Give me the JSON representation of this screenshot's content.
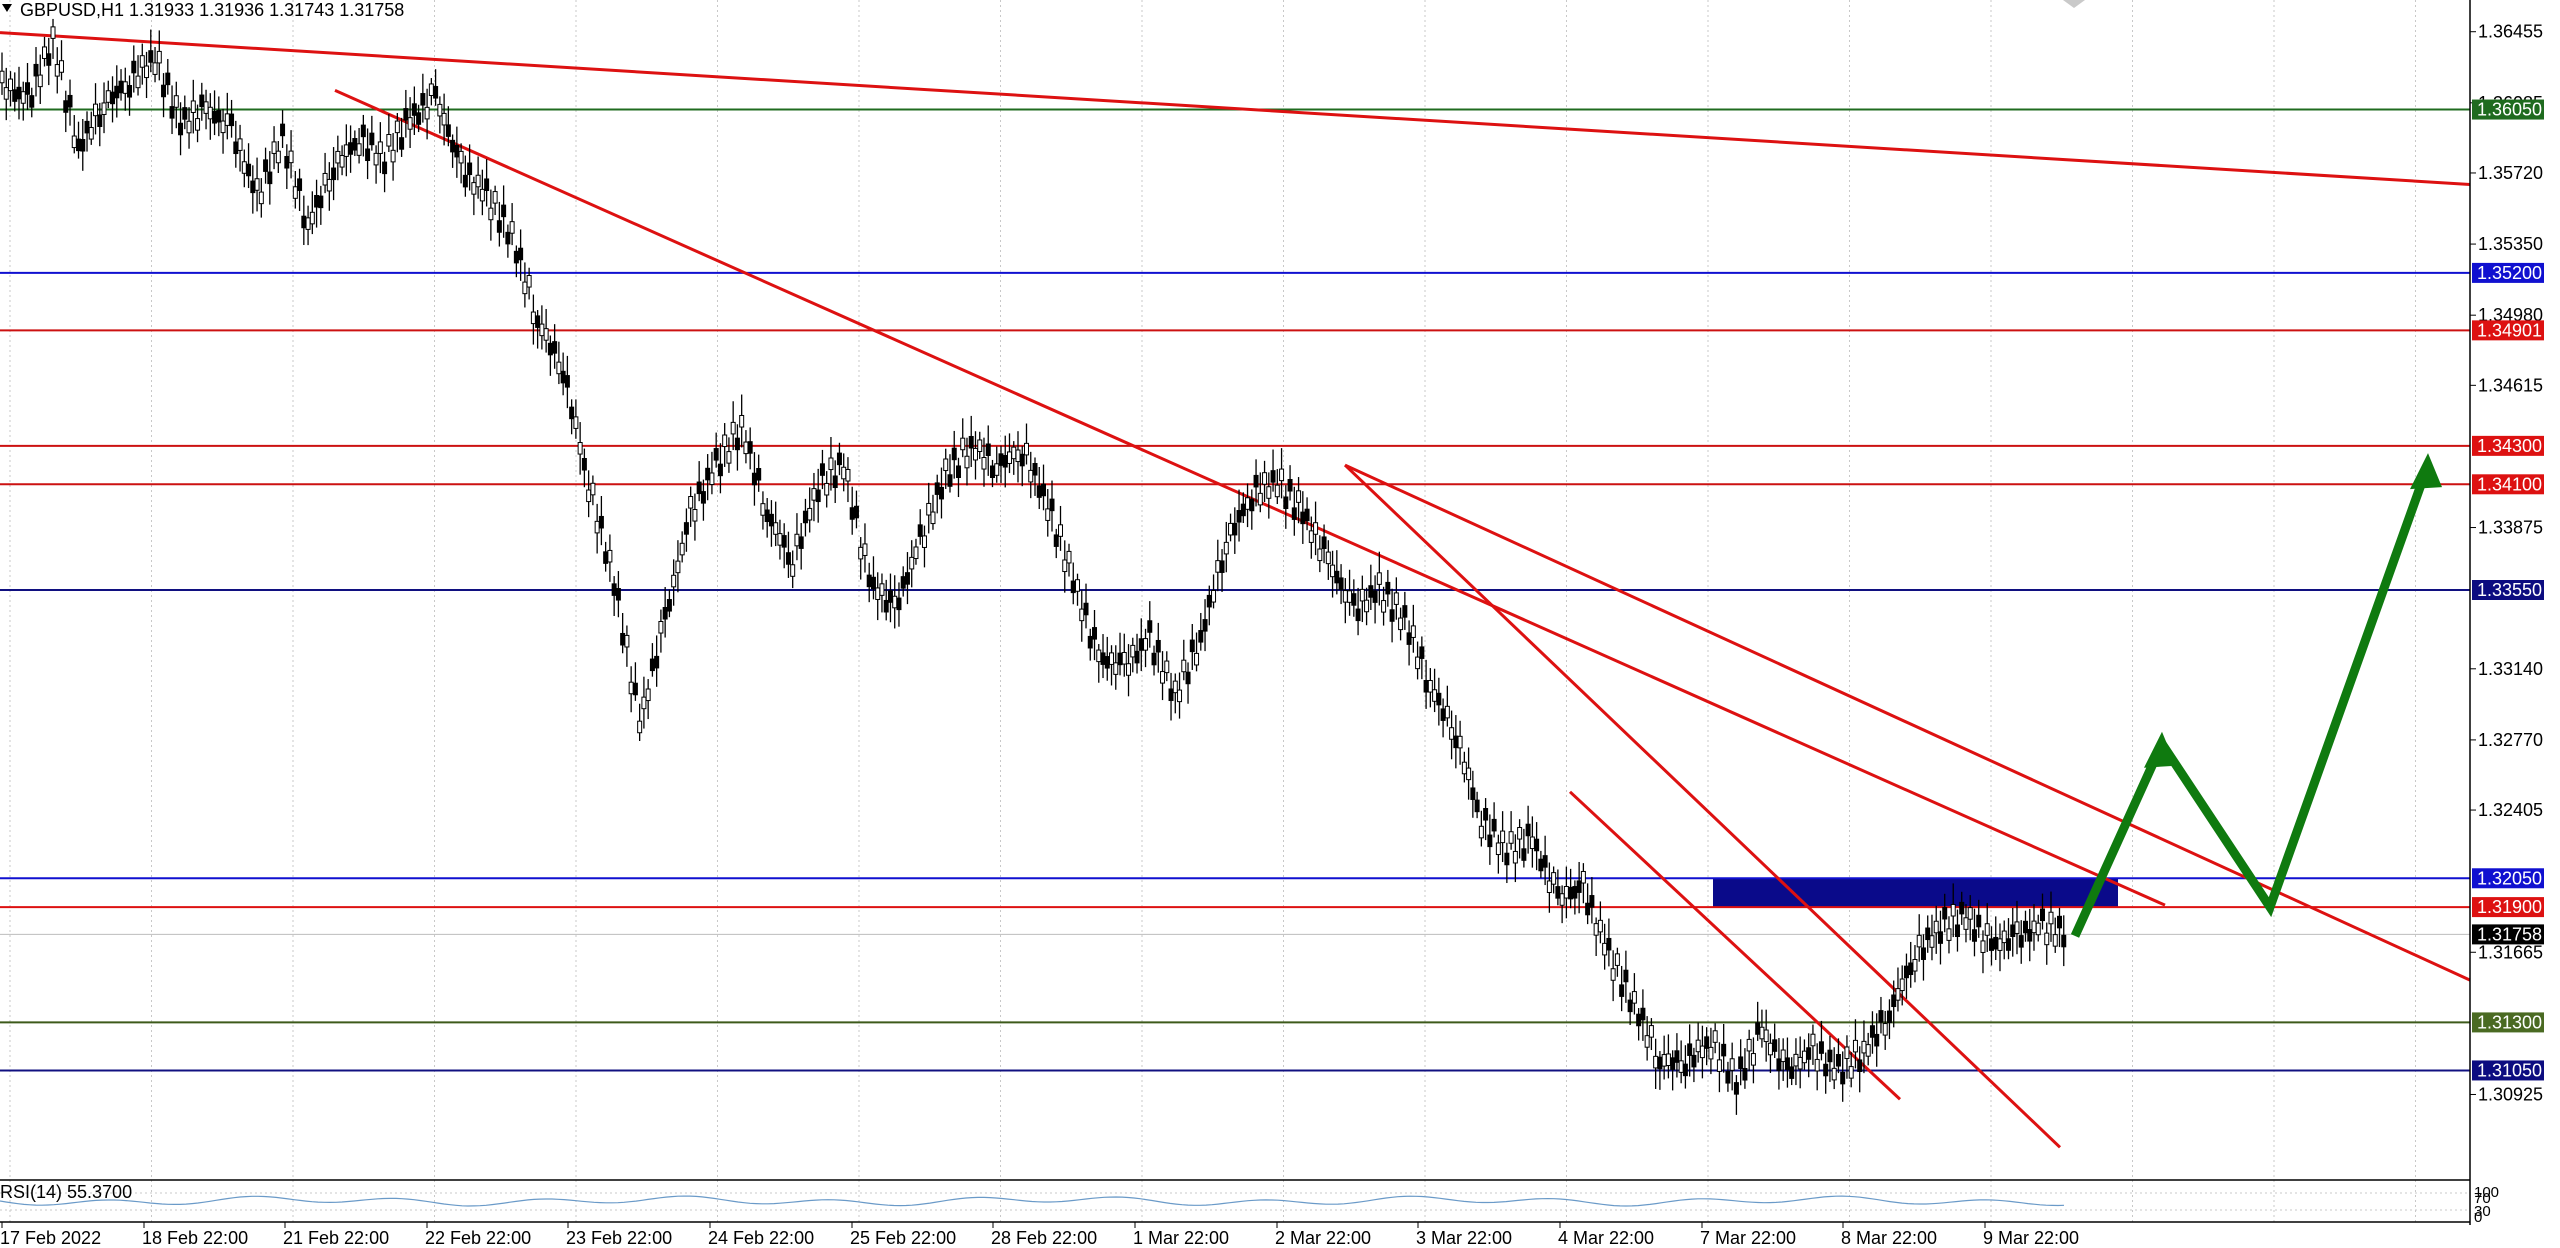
{
  "header": {
    "symbol_info": "GBPUSD,H1  1.31933 1.31936 1.31743 1.31758",
    "indicator_label": "RSI(14) 55.3700"
  },
  "price_axis": {
    "ticks": [
      "1.36455",
      "1.36085",
      "1.35720",
      "1.35350",
      "1.34980",
      "1.34615",
      "1.33875",
      "1.33140",
      "1.32770",
      "1.32405",
      "1.31665",
      "1.30925"
    ],
    "min": 1.3048,
    "max": 1.3662
  },
  "rsi_axis": {
    "labels": [
      "100",
      "70",
      "30",
      "0"
    ]
  },
  "time_axis": {
    "labels": [
      "17 Feb 2022",
      "18 Feb 22:00",
      "21 Feb 22:00",
      "22 Feb 22:00",
      "23 Feb 22:00",
      "24 Feb 22:00",
      "25 Feb 22:00",
      "28 Feb 22:00",
      "1 Mar 22:00",
      "2 Mar 22:00",
      "3 Mar 22:00",
      "4 Mar 22:00",
      "7 Mar 22:00",
      "8 Mar 22:00",
      "9 Mar 22:00"
    ]
  },
  "levels": [
    {
      "price": "1.36050",
      "value": 1.3605,
      "color": "#1f6b1f",
      "tag_color": "#1f6b1f"
    },
    {
      "price": "1.35200",
      "value": 1.352,
      "color": "#1010d0",
      "tag_color": "#1010d0"
    },
    {
      "price": "1.34901",
      "value": 1.34901,
      "color": "#cc1111",
      "tag_color": "#dd1111"
    },
    {
      "price": "1.34300",
      "value": 1.343,
      "color": "#cc1111",
      "tag_color": "#dd1111"
    },
    {
      "price": "1.34100",
      "value": 1.341,
      "color": "#cc1111",
      "tag_color": "#dd1111"
    },
    {
      "price": "1.33550",
      "value": 1.3355,
      "color": "#101080",
      "tag_color": "#0c0c80"
    },
    {
      "price": "1.32050",
      "value": 1.3205,
      "color": "#1010d0",
      "tag_color": "#1010d0"
    },
    {
      "price": "1.31900",
      "value": 1.319,
      "color": "#dd1111",
      "tag_color": "#dd1111"
    },
    {
      "price": "1.31300",
      "value": 1.313,
      "color": "#3d5a1a",
      "tag_color": "#4a6a22"
    },
    {
      "price": "1.31050",
      "value": 1.3105,
      "color": "#101080",
      "tag_color": "#0c0c80"
    }
  ],
  "current_price": {
    "price": "1.31758",
    "value": 1.31758,
    "tag_color": "#000000"
  },
  "zone": {
    "from": 1.319,
    "to": 1.3205,
    "color": "#0a0a8a"
  },
  "trendlines": [
    {
      "from": [
        "17 Feb 2022",
        1.3645
      ],
      "to": [
        "11 Mar 2022",
        1.3566
      ],
      "color": "#dd1111"
    },
    {
      "from": [
        "22 Feb 2022",
        1.3615
      ],
      "to": [
        "10 Mar 2022",
        1.3191
      ],
      "color": "#dd1111"
    },
    {
      "from": [
        "2 Mar 2022",
        1.342
      ],
      "to": [
        "11 Mar 2022",
        1.3152
      ],
      "color": "#dd1111"
    },
    {
      "from": [
        "2 Mar 2022",
        1.342
      ],
      "to": [
        "9 Mar 2022",
        1.3065
      ],
      "color": "#dd1111"
    },
    {
      "from": [
        "4 Mar 2022",
        1.325
      ],
      "to": [
        "8 Mar 2022",
        1.309
      ],
      "color": "#dd1111"
    }
  ],
  "projection": {
    "color": "#0f7a0f",
    "points": [
      [
        "9 Mar 2022",
        1.3175
      ],
      [
        "10 Mar 2022",
        1.3275
      ],
      [
        "10 Mar 2022",
        1.319
      ],
      [
        "11 Mar 2022",
        1.342
      ]
    ]
  },
  "candle_path": [
    1.3618,
    1.361,
    1.364,
    1.3585,
    1.3608,
    1.362,
    1.3632,
    1.3598,
    1.3605,
    1.3595,
    1.356,
    1.359,
    1.3545,
    1.3575,
    1.359,
    1.358,
    1.36,
    1.3612,
    1.3575,
    1.356,
    1.354,
    1.3495,
    1.347,
    1.341,
    1.336,
    1.3285,
    1.334,
    1.3395,
    1.342,
    1.344,
    1.3395,
    1.337,
    1.341,
    1.342,
    1.336,
    1.3345,
    1.338,
    1.3415,
    1.343,
    1.342,
    1.3428,
    1.34,
    1.336,
    1.332,
    1.3315,
    1.333,
    1.33,
    1.333,
    1.338,
    1.3405,
    1.3412,
    1.3395,
    1.337,
    1.3345,
    1.3355,
    1.334,
    1.3305,
    1.328,
    1.3235,
    1.322,
    1.3225,
    1.3195,
    1.32,
    1.3165,
    1.314,
    1.311,
    1.311,
    1.312,
    1.31,
    1.3125,
    1.3105,
    1.3115,
    1.3105,
    1.3115,
    1.3135,
    1.3165,
    1.318,
    1.3185,
    1.317,
    1.3175,
    1.318,
    1.3176
  ]
}
